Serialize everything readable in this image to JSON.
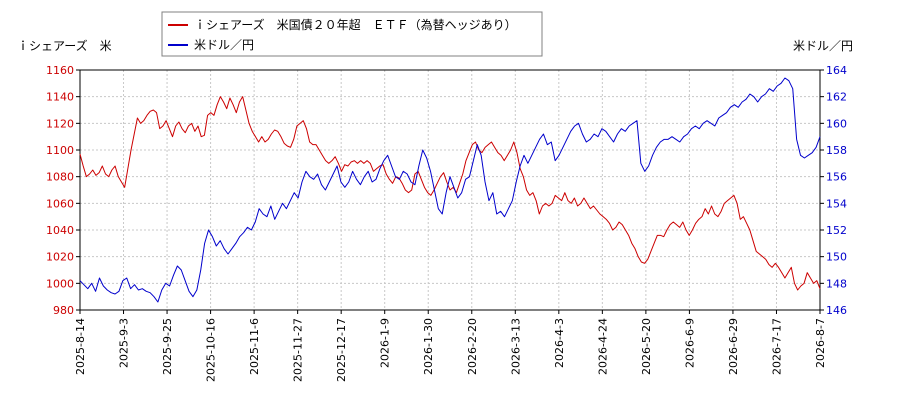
{
  "chart_data": {
    "type": "line",
    "legend_placement": "top-center",
    "grid": true,
    "series": [
      {
        "name": "ｉシェアーズ　米国債２０年超　ＥＴＦ（為替ヘッジあり）",
        "color": "#cc0000",
        "axis": "left",
        "values": [
          1097,
          1088,
          1080,
          1082,
          1085,
          1081,
          1083,
          1088,
          1082,
          1080,
          1085,
          1088,
          1080,
          1076,
          1072,
          1086,
          1100,
          1112,
          1124,
          1120,
          1122,
          1126,
          1129,
          1130,
          1128,
          1116,
          1118,
          1122,
          1116,
          1110,
          1118,
          1121,
          1116,
          1113,
          1118,
          1120,
          1114,
          1118,
          1110,
          1111,
          1126,
          1128,
          1126,
          1134,
          1140,
          1136,
          1131,
          1139,
          1134,
          1128,
          1136,
          1140,
          1130,
          1120,
          1114,
          1110,
          1106,
          1110,
          1106,
          1108,
          1112,
          1115,
          1114,
          1110,
          1105,
          1103,
          1102,
          1108,
          1118,
          1120,
          1122,
          1116,
          1106,
          1104,
          1104,
          1100,
          1096,
          1092,
          1090,
          1092,
          1095,
          1090,
          1084,
          1089,
          1088,
          1091,
          1092,
          1090,
          1092,
          1090,
          1092,
          1090,
          1084,
          1086,
          1088,
          1089,
          1082,
          1078,
          1075,
          1080,
          1079,
          1075,
          1070,
          1068,
          1070,
          1082,
          1084,
          1078,
          1072,
          1068,
          1066,
          1070,
          1075,
          1080,
          1083,
          1076,
          1070,
          1072,
          1068,
          1075,
          1082,
          1092,
          1098,
          1104,
          1106,
          1100,
          1098,
          1102,
          1104,
          1106,
          1102,
          1098,
          1096,
          1092,
          1096,
          1100,
          1106,
          1098,
          1086,
          1080,
          1070,
          1066,
          1068,
          1062,
          1052,
          1058,
          1060,
          1058,
          1060,
          1066,
          1064,
          1062,
          1068,
          1062,
          1060,
          1064,
          1058,
          1060,
          1064,
          1060,
          1056,
          1058,
          1055,
          1052,
          1050,
          1048,
          1045,
          1040,
          1042,
          1046,
          1044,
          1040,
          1036,
          1030,
          1026,
          1020,
          1016,
          1015,
          1018,
          1024,
          1030,
          1036,
          1036,
          1035,
          1040,
          1044,
          1046,
          1044,
          1042,
          1046,
          1040,
          1036,
          1040,
          1045,
          1048,
          1050,
          1056,
          1052,
          1058,
          1052,
          1050,
          1054,
          1060,
          1062,
          1064,
          1066,
          1060,
          1048,
          1050,
          1045,
          1040,
          1032,
          1024,
          1022,
          1020,
          1018,
          1014,
          1012,
          1015,
          1012,
          1008,
          1004,
          1008,
          1012,
          1000,
          995,
          998,
          1000,
          1008,
          1004,
          1000,
          1002,
          996
        ]
      },
      {
        "name": "米ドル／円",
        "color": "#0000cc",
        "axis": "right",
        "values": [
          148.2,
          147.9,
          147.6,
          148.0,
          147.4,
          148.4,
          147.8,
          147.5,
          147.3,
          147.2,
          147.4,
          148.2,
          148.4,
          147.6,
          147.9,
          147.5,
          147.6,
          147.4,
          147.3,
          147.0,
          146.6,
          147.5,
          148.0,
          147.8,
          148.6,
          149.3,
          149.0,
          148.2,
          147.4,
          147.0,
          147.5,
          149.0,
          151.0,
          152.0,
          151.5,
          150.8,
          151.2,
          150.6,
          150.2,
          150.6,
          151.0,
          151.5,
          151.8,
          152.2,
          152.0,
          152.6,
          153.6,
          153.2,
          153.0,
          153.8,
          152.8,
          153.4,
          154.0,
          153.6,
          154.2,
          154.8,
          154.4,
          155.6,
          156.4,
          156.0,
          155.8,
          156.2,
          155.4,
          155.0,
          155.6,
          156.2,
          156.8,
          155.6,
          155.2,
          155.6,
          156.4,
          155.8,
          155.4,
          156.0,
          156.4,
          155.6,
          155.8,
          156.6,
          157.2,
          157.6,
          156.8,
          156.0,
          155.8,
          156.4,
          156.2,
          155.6,
          155.4,
          156.8,
          158.0,
          157.4,
          156.4,
          155.0,
          153.6,
          153.2,
          154.8,
          156.0,
          155.2,
          154.4,
          154.8,
          155.8,
          156.0,
          157.2,
          158.4,
          157.6,
          155.6,
          154.2,
          154.8,
          153.2,
          153.4,
          153.0,
          153.6,
          154.2,
          155.6,
          156.8,
          157.6,
          157.0,
          157.6,
          158.2,
          158.8,
          159.2,
          158.4,
          158.6,
          157.2,
          157.6,
          158.2,
          158.8,
          159.4,
          159.8,
          160.0,
          159.2,
          158.6,
          158.8,
          159.2,
          159.0,
          159.6,
          159.4,
          159.0,
          158.6,
          159.2,
          159.6,
          159.4,
          159.8,
          160.0,
          160.2,
          157.0,
          156.4,
          156.8,
          157.6,
          158.2,
          158.6,
          158.8,
          158.8,
          159.0,
          158.8,
          158.6,
          159.0,
          159.2,
          159.6,
          159.8,
          159.6,
          160.0,
          160.2,
          160.0,
          159.8,
          160.4,
          160.6,
          160.8,
          161.2,
          161.4,
          161.2,
          161.6,
          161.8,
          162.2,
          162.0,
          161.6,
          162.0,
          162.2,
          162.6,
          162.4,
          162.8,
          163.0,
          163.4,
          163.2,
          162.6,
          158.8,
          157.6,
          157.4,
          157.6,
          157.8,
          158.2,
          159.0
        ]
      }
    ],
    "left_axis": {
      "title": "ｉシェアーズ　米",
      "min": 980,
      "max": 1160,
      "ticks": [
        980,
        1000,
        1020,
        1040,
        1060,
        1080,
        1100,
        1120,
        1140,
        1160
      ]
    },
    "right_axis": {
      "title": "米ドル／円",
      "min": 146,
      "max": 164,
      "ticks": [
        146,
        148,
        150,
        152,
        154,
        156,
        158,
        160,
        162,
        164
      ]
    },
    "x_tick_labels": [
      "2025-8-14",
      "2025-9-3",
      "2025-9-25",
      "2025-10-16",
      "2025-11-6",
      "2025-11-27",
      "2025-12-17",
      "2026-1-9",
      "2026-1-30",
      "2026-2-20",
      "2026-3-13",
      "2026-4-3",
      "2026-4-24",
      "2026-5-20",
      "2026-6-9",
      "2026-6-29",
      "2026-7-17",
      "2026-8-7"
    ]
  }
}
